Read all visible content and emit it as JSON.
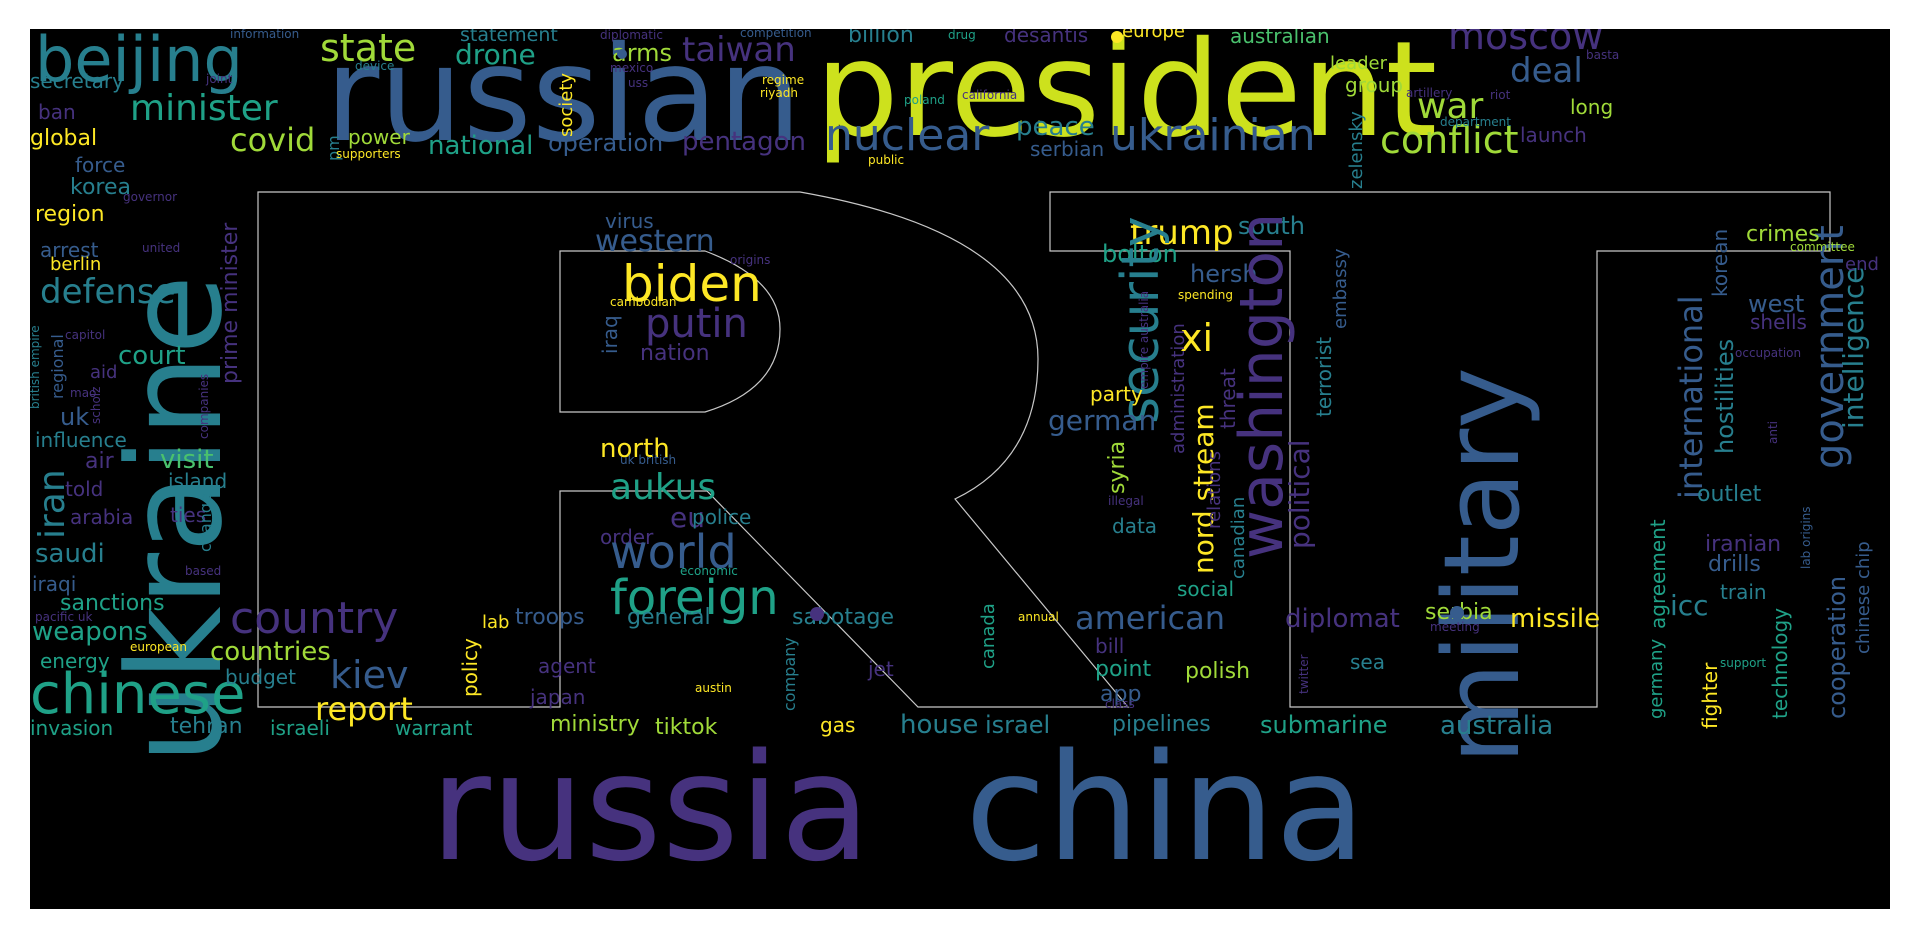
{
  "palette": {
    "yellow": "#cde11d",
    "lime": "#a0da39",
    "green": "#4ac16d",
    "seagreen": "#1fa187",
    "teal": "#277f8e",
    "blue": "#365c8d",
    "indigo": "#46327e",
    "purple": "#440154",
    "gold": "#fde725"
  },
  "words": [
    {
      "id": "russian",
      "text": "russian"
    },
    {
      "id": "president",
      "text": "president"
    },
    {
      "id": "russia",
      "text": "russia"
    },
    {
      "id": "china",
      "text": "china"
    },
    {
      "id": "ukraine",
      "text": "ukraine"
    },
    {
      "id": "military",
      "text": "military"
    },
    {
      "id": "beijing",
      "text": "beijing"
    },
    {
      "id": "state",
      "text": "state"
    },
    {
      "id": "minister",
      "text": "minister"
    },
    {
      "id": "drone",
      "text": "drone"
    },
    {
      "id": "arms",
      "text": "arms"
    },
    {
      "id": "taiwan",
      "text": "taiwan"
    },
    {
      "id": "statement",
      "text": "statement"
    },
    {
      "id": "billion",
      "text": "billion"
    },
    {
      "id": "desantis",
      "text": "desantis"
    },
    {
      "id": "europe",
      "text": "europe"
    },
    {
      "id": "australian",
      "text": "australian"
    },
    {
      "id": "moscow",
      "text": "moscow"
    },
    {
      "id": "deal",
      "text": "deal"
    },
    {
      "id": "war",
      "text": "war"
    },
    {
      "id": "nuclear",
      "text": "nuclear"
    },
    {
      "id": "ukrainian",
      "text": "ukrainian"
    },
    {
      "id": "conflict",
      "text": "conflict"
    },
    {
      "id": "peace",
      "text": "peace"
    },
    {
      "id": "serbian",
      "text": "serbian"
    },
    {
      "id": "covid",
      "text": "covid"
    },
    {
      "id": "national",
      "text": "national"
    },
    {
      "id": "operation",
      "text": "operation"
    },
    {
      "id": "pentagon",
      "text": "pentagon"
    },
    {
      "id": "power",
      "text": "power"
    },
    {
      "id": "secretary",
      "text": "secretary"
    },
    {
      "id": "global",
      "text": "global"
    },
    {
      "id": "ban",
      "text": "ban"
    },
    {
      "id": "force",
      "text": "force"
    },
    {
      "id": "korea",
      "text": "korea"
    },
    {
      "id": "region",
      "text": "region"
    },
    {
      "id": "arrest",
      "text": "arrest"
    },
    {
      "id": "berlin",
      "text": "berlin"
    },
    {
      "id": "defense",
      "text": "defense"
    },
    {
      "id": "court",
      "text": "court"
    },
    {
      "id": "prime_minister",
      "text": "prime minister"
    },
    {
      "id": "uk",
      "text": "uk"
    },
    {
      "id": "influence",
      "text": "influence"
    },
    {
      "id": "iran",
      "text": "iran"
    },
    {
      "id": "air",
      "text": "air"
    },
    {
      "id": "visit",
      "text": "visit"
    },
    {
      "id": "told",
      "text": "told"
    },
    {
      "id": "island",
      "text": "island"
    },
    {
      "id": "arabia",
      "text": "arabia"
    },
    {
      "id": "ties",
      "text": "ties"
    },
    {
      "id": "saudi",
      "text": "saudi"
    },
    {
      "id": "iraqi",
      "text": "iraqi"
    },
    {
      "id": "sanctions",
      "text": "sanctions"
    },
    {
      "id": "weapons",
      "text": "weapons"
    },
    {
      "id": "energy",
      "text": "energy"
    },
    {
      "id": "chinese",
      "text": "chinese"
    },
    {
      "id": "invasion",
      "text": "invasion"
    },
    {
      "id": "tehran",
      "text": "tehran"
    },
    {
      "id": "israeli",
      "text": "israeli"
    },
    {
      "id": "warrant",
      "text": "warrant"
    },
    {
      "id": "country",
      "text": "country"
    },
    {
      "id": "countries",
      "text": "countries"
    },
    {
      "id": "kiev",
      "text": "kiev"
    },
    {
      "id": "report",
      "text": "report"
    },
    {
      "id": "budget",
      "text": "budget"
    },
    {
      "id": "policy",
      "text": "policy"
    },
    {
      "id": "ministry",
      "text": "ministry"
    },
    {
      "id": "tiktok",
      "text": "tiktok"
    },
    {
      "id": "gas",
      "text": "gas"
    },
    {
      "id": "house",
      "text": "house"
    },
    {
      "id": "israel",
      "text": "israel"
    },
    {
      "id": "pipelines",
      "text": "pipelines"
    },
    {
      "id": "submarine",
      "text": "submarine"
    },
    {
      "id": "australia",
      "text": "australia"
    },
    {
      "id": "western",
      "text": "western"
    },
    {
      "id": "biden",
      "text": "biden"
    },
    {
      "id": "putin",
      "text": "putin"
    },
    {
      "id": "nation",
      "text": "nation"
    },
    {
      "id": "virus",
      "text": "virus"
    },
    {
      "id": "iraq",
      "text": "iraq"
    },
    {
      "id": "north",
      "text": "north"
    },
    {
      "id": "aukus",
      "text": "aukus"
    },
    {
      "id": "eu",
      "text": "eu"
    },
    {
      "id": "police",
      "text": "police"
    },
    {
      "id": "order",
      "text": "order"
    },
    {
      "id": "world",
      "text": "world"
    },
    {
      "id": "foreign",
      "text": "foreign"
    },
    {
      "id": "troops",
      "text": "troops"
    },
    {
      "id": "general",
      "text": "general"
    },
    {
      "id": "sabotage",
      "text": "sabotage"
    },
    {
      "id": "lab",
      "text": "lab"
    },
    {
      "id": "trump",
      "text": "trump"
    },
    {
      "id": "south",
      "text": "south"
    },
    {
      "id": "bolton",
      "text": "bolton"
    },
    {
      "id": "hersh",
      "text": "hersh"
    },
    {
      "id": "security",
      "text": "security"
    },
    {
      "id": "washington",
      "text": "washington"
    },
    {
      "id": "nord_stream",
      "text": "nord stream"
    },
    {
      "id": "xi",
      "text": "xi"
    },
    {
      "id": "german",
      "text": "german"
    },
    {
      "id": "party",
      "text": "party"
    },
    {
      "id": "syria",
      "text": "syria"
    },
    {
      "id": "political",
      "text": "political"
    },
    {
      "id": "terrorist",
      "text": "terrorist"
    },
    {
      "id": "embassy",
      "text": "embassy"
    },
    {
      "id": "threat",
      "text": "threat"
    },
    {
      "id": "administration",
      "text": "administration"
    },
    {
      "id": "data",
      "text": "data"
    },
    {
      "id": "social",
      "text": "social"
    },
    {
      "id": "canadian",
      "text": "canadian"
    },
    {
      "id": "relations",
      "text": "relations"
    },
    {
      "id": "american",
      "text": "american"
    },
    {
      "id": "diplomat",
      "text": "diplomat"
    },
    {
      "id": "serbia",
      "text": "serbia"
    },
    {
      "id": "missile",
      "text": "missile"
    },
    {
      "id": "bill",
      "text": "bill"
    },
    {
      "id": "point",
      "text": "point"
    },
    {
      "id": "polish",
      "text": "polish"
    },
    {
      "id": "app",
      "text": "app"
    },
    {
      "id": "sea",
      "text": "sea"
    },
    {
      "id": "agent",
      "text": "agent"
    },
    {
      "id": "jet",
      "text": "jet"
    },
    {
      "id": "japan",
      "text": "japan"
    },
    {
      "id": "company",
      "text": "company"
    },
    {
      "id": "canada",
      "text": "canada"
    },
    {
      "id": "international",
      "text": "international"
    },
    {
      "id": "korean",
      "text": "korean"
    },
    {
      "id": "hostilities",
      "text": "hostilities"
    },
    {
      "id": "government",
      "text": "government"
    },
    {
      "id": "intelligence",
      "text": "intelligence"
    },
    {
      "id": "crimes",
      "text": "crimes"
    },
    {
      "id": "end",
      "text": "end"
    },
    {
      "id": "west",
      "text": "west"
    },
    {
      "id": "shells",
      "text": "shells"
    },
    {
      "id": "outlet",
      "text": "outlet"
    },
    {
      "id": "iranian",
      "text": "iranian"
    },
    {
      "id": "drills",
      "text": "drills"
    },
    {
      "id": "icc",
      "text": "icc"
    },
    {
      "id": "train",
      "text": "train"
    },
    {
      "id": "agreement",
      "text": "agreement"
    },
    {
      "id": "germany",
      "text": "germany"
    },
    {
      "id": "fighter",
      "text": "fighter"
    },
    {
      "id": "cooperation",
      "text": "cooperation"
    },
    {
      "id": "chinese_chip",
      "text": "chinese chip"
    },
    {
      "id": "technology",
      "text": "technology"
    },
    {
      "id": "zelensky",
      "text": "zelensky"
    },
    {
      "id": "group",
      "text": "group"
    },
    {
      "id": "leader",
      "text": "leader"
    },
    {
      "id": "long",
      "text": "long"
    },
    {
      "id": "launch",
      "text": "launch"
    },
    {
      "id": "society",
      "text": "society"
    },
    {
      "id": "pm",
      "text": "pm"
    },
    {
      "id": "information",
      "text": "information"
    },
    {
      "id": "competition",
      "text": "competition"
    },
    {
      "id": "diplomatic",
      "text": "diplomatic"
    },
    {
      "id": "drug",
      "text": "drug"
    },
    {
      "id": "device",
      "text": "device"
    },
    {
      "id": "mexico",
      "text": "mexico"
    },
    {
      "id": "uss",
      "text": "uss"
    },
    {
      "id": "regime",
      "text": "regime"
    },
    {
      "id": "riyadh",
      "text": "riyadh"
    },
    {
      "id": "poland",
      "text": "poland"
    },
    {
      "id": "california",
      "text": "california"
    },
    {
      "id": "artillery",
      "text": "artillery"
    },
    {
      "id": "riot",
      "text": "riot"
    },
    {
      "id": "basta",
      "text": "basta"
    },
    {
      "id": "department",
      "text": "department"
    },
    {
      "id": "joint",
      "text": "joint"
    },
    {
      "id": "supporters",
      "text": "supporters"
    },
    {
      "id": "public",
      "text": "public"
    },
    {
      "id": "governor",
      "text": "governor"
    },
    {
      "id": "united",
      "text": "united"
    },
    {
      "id": "capitol",
      "text": "capitol"
    },
    {
      "id": "mao",
      "text": "mao"
    },
    {
      "id": "aid",
      "text": "aid"
    },
    {
      "id": "regional",
      "text": "regional"
    },
    {
      "id": "british_empire",
      "text": "british empire"
    },
    {
      "id": "scholz",
      "text": "scholz"
    },
    {
      "id": "companies",
      "text": "companies"
    },
    {
      "id": "change",
      "text": "change"
    },
    {
      "id": "based",
      "text": "based"
    },
    {
      "id": "pacific_uk",
      "text": "pacific uk"
    },
    {
      "id": "european",
      "text": "european"
    },
    {
      "id": "origins",
      "text": "origins"
    },
    {
      "id": "cambodian",
      "text": "cambodian"
    },
    {
      "id": "uk_british",
      "text": "uk british"
    },
    {
      "id": "economic",
      "text": "economic"
    },
    {
      "id": "austin",
      "text": "austin"
    },
    {
      "id": "annual",
      "text": "annual"
    },
    {
      "id": "spending",
      "text": "spending"
    },
    {
      "id": "empire_australia",
      "text": "empire australia"
    },
    {
      "id": "illegal",
      "text": "illegal"
    },
    {
      "id": "class",
      "text": "class"
    },
    {
      "id": "twitter",
      "text": "twitter"
    },
    {
      "id": "meeting",
      "text": "meeting"
    },
    {
      "id": "support",
      "text": "support"
    },
    {
      "id": "committee",
      "text": "committee"
    },
    {
      "id": "occupation",
      "text": "occupation"
    },
    {
      "id": "anti",
      "text": "anti"
    },
    {
      "id": "lab_origins",
      "text": "lab origins"
    }
  ]
}
